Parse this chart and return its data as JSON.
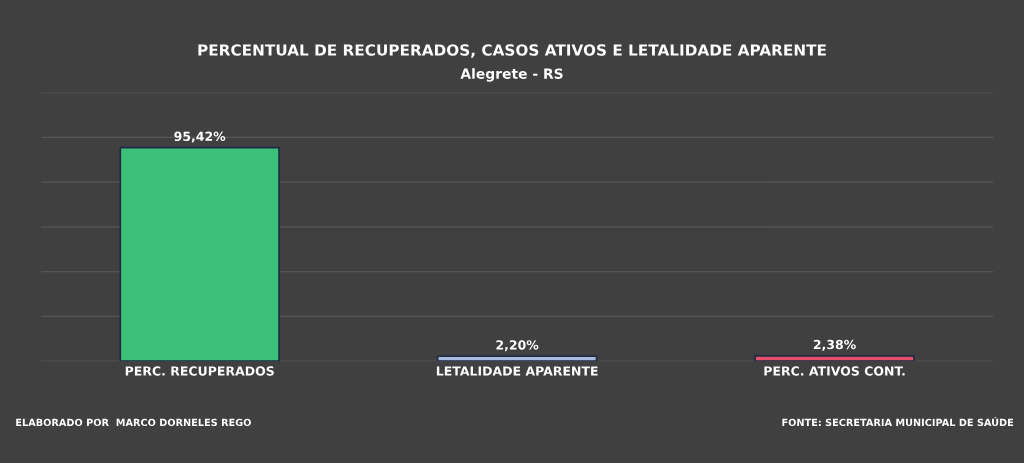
{
  "chart_data": {
    "type": "bar",
    "title": "PERCENTUAL DE RECUPERADOS, CASOS ATIVOS E LETALIDADE APARENTE",
    "subtitle": "Alegrete - RS",
    "categories": [
      "PERC. RECUPERADOS",
      "LETALIDADE APARENTE",
      "PERC. ATIVOS CONT."
    ],
    "values": [
      95.42,
      2.2,
      2.38
    ],
    "colors": [
      "#3cc07a",
      "#a9bde0",
      "#e8506a"
    ],
    "value_labels": [
      "95,42%",
      "2,20%",
      "2,38%"
    ],
    "ylim": [
      0,
      120
    ],
    "yticks": [
      {
        "value": 0,
        "label": null
      },
      {
        "value": 20,
        "label": null
      },
      {
        "value": 40,
        "label": null
      },
      {
        "value": 60,
        "label": null
      },
      {
        "value": 80,
        "label": null
      },
      {
        "value": 100,
        "label": null
      },
      {
        "value": 120,
        "label": null
      }
    ],
    "tick_labels": "x",
    "grid": "y",
    "annotations": [
      "ELABORADO POR  MARCO DORNELES REGO",
      "FONTE: SECRETARIA MUNICIPAL DE SAÚDE"
    ]
  }
}
